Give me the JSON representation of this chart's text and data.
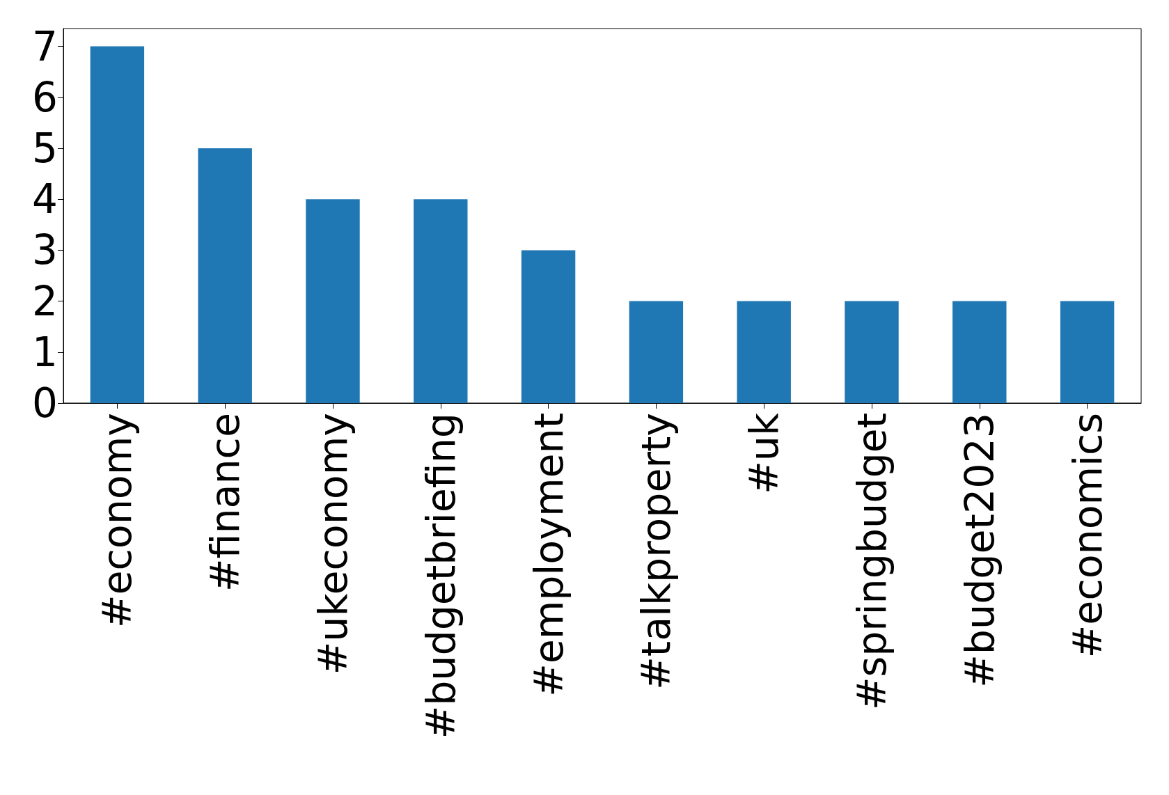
{
  "chart_data": {
    "type": "bar",
    "categories": [
      "#economy",
      "#finance",
      "#ukeconomy",
      "#budgetbriefing",
      "#employment",
      "#talkproperty",
      "#uk",
      "#springbudget",
      "#budget2023",
      "#economics"
    ],
    "values": [
      7,
      5,
      4,
      4,
      3,
      2,
      2,
      2,
      2,
      2
    ],
    "color": "#1f77b4",
    "ylim": [
      0,
      7.35
    ],
    "yticks": [
      0,
      1,
      2,
      3,
      4,
      5,
      6,
      7
    ],
    "grid": false
  }
}
